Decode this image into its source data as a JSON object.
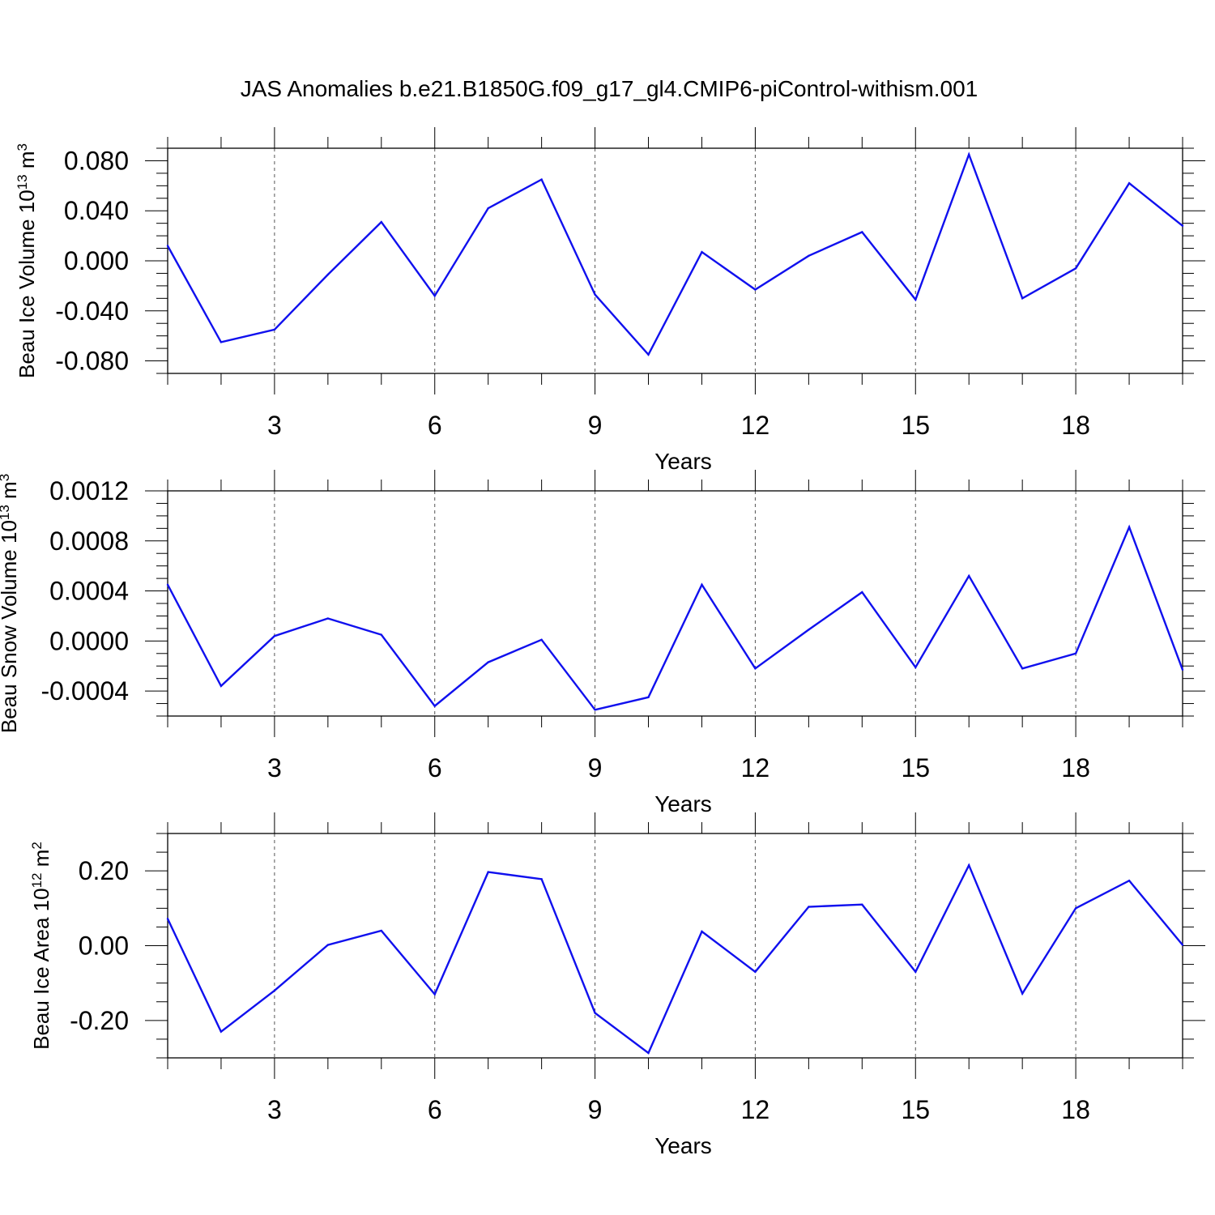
{
  "title": "JAS Anomalies b.e21.B1850G.f09_g17_gl4.CMIP6-piControl-withism.001",
  "colors": {
    "line": "#1010ee",
    "frame": "#000000",
    "grid": "#555555"
  },
  "chart_data": [
    {
      "type": "line",
      "title": "",
      "xlabel": "Years",
      "ylabel": {
        "main": "Beau Ice Volume 10",
        "sup": "13",
        "unit": " m",
        "unit_sup": "3"
      },
      "xlim": [
        1,
        20
      ],
      "ylim": [
        -0.09,
        0.09
      ],
      "xticks": [
        3,
        6,
        9,
        12,
        15,
        18
      ],
      "yticks": [
        -0.08,
        -0.04,
        0.0,
        0.04,
        0.08
      ],
      "ytick_labels": [
        "-0.080",
        "-0.040",
        "0.000",
        "0.040",
        "0.080"
      ],
      "grid": "x-dashed",
      "series": [
        {
          "x": [
            1,
            2,
            3,
            4,
            5,
            6,
            7,
            8,
            9,
            10,
            11,
            12,
            13,
            14,
            15,
            16,
            17,
            18,
            19,
            20
          ],
          "values": [
            0.012,
            -0.065,
            -0.055,
            -0.011,
            0.031,
            -0.028,
            0.042,
            0.065,
            -0.027,
            -0.075,
            0.007,
            -0.023,
            0.004,
            0.023,
            -0.031,
            0.085,
            -0.03,
            -0.006,
            0.062,
            0.028
          ]
        }
      ]
    },
    {
      "type": "line",
      "title": "",
      "xlabel": "Years",
      "ylabel": {
        "main": "Beau Snow Volume 10",
        "sup": "13",
        "unit": " m",
        "unit_sup": "3"
      },
      "xlim": [
        1,
        20
      ],
      "ylim": [
        -0.0006,
        0.0012
      ],
      "xticks": [
        3,
        6,
        9,
        12,
        15,
        18
      ],
      "yticks": [
        -0.0004,
        0.0,
        0.0004,
        0.0008,
        0.0012
      ],
      "ytick_labels": [
        "-0.0004",
        "0.0000",
        "0.0004",
        "0.0008",
        "0.0012"
      ],
      "grid": "x-dashed",
      "series": [
        {
          "x": [
            1,
            2,
            3,
            4,
            5,
            6,
            7,
            8,
            9,
            10,
            11,
            12,
            13,
            14,
            15,
            16,
            17,
            18,
            19,
            20
          ],
          "values": [
            0.00045,
            -0.00036,
            4e-05,
            0.00018,
            5e-05,
            -0.00052,
            -0.00017,
            1e-05,
            -0.00055,
            -0.00045,
            0.00045,
            -0.00022,
            9e-05,
            0.00039,
            -0.00021,
            0.00052,
            -0.00022,
            -0.0001,
            0.00091,
            -0.00023
          ]
        }
      ]
    },
    {
      "type": "line",
      "title": "",
      "xlabel": "Years",
      "ylabel": {
        "main": "Beau Ice Area 10",
        "sup": "12",
        "unit": " m",
        "unit_sup": "2"
      },
      "xlim": [
        1,
        20
      ],
      "ylim": [
        -0.3,
        0.3
      ],
      "xticks": [
        3,
        6,
        9,
        12,
        15,
        18
      ],
      "yticks": [
        -0.2,
        0.0,
        0.2
      ],
      "ytick_labels": [
        "-0.20",
        "0.00",
        "0.20"
      ],
      "grid": "x-dashed",
      "series": [
        {
          "x": [
            1,
            2,
            3,
            4,
            5,
            6,
            7,
            8,
            9,
            10,
            11,
            12,
            13,
            14,
            15,
            16,
            17,
            18,
            19,
            20
          ],
          "values": [
            0.072,
            -0.23,
            -0.12,
            0.002,
            0.04,
            -0.13,
            0.197,
            0.178,
            -0.18,
            -0.287,
            0.038,
            -0.07,
            0.104,
            0.11,
            -0.07,
            0.215,
            -0.128,
            0.1,
            0.174,
            0.002
          ]
        }
      ]
    }
  ]
}
